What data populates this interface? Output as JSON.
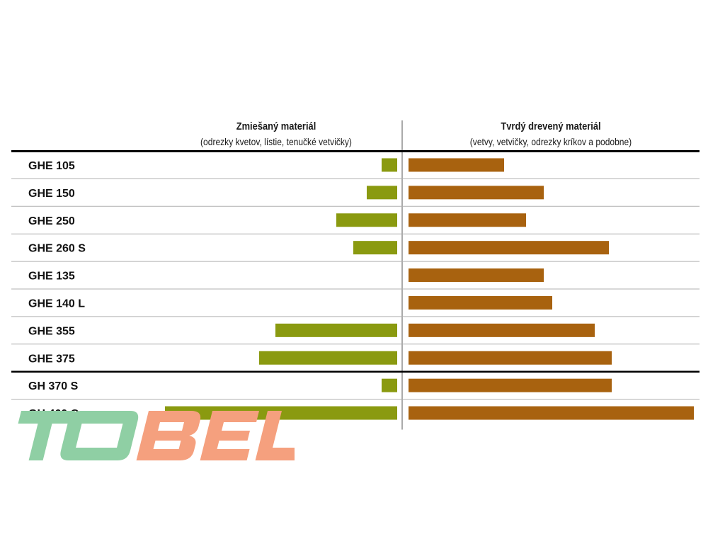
{
  "chart_data": {
    "type": "bar",
    "orientation": "horizontal",
    "layout": "diverging",
    "categories": [
      "GHE 105",
      "GHE 150",
      "GHE 250",
      "GHE 260 S",
      "GHE 135",
      "GHE 140 L",
      "GHE 355",
      "GHE 375",
      "GH 370 S",
      "GH 460 C"
    ],
    "series": [
      {
        "name": "Zmiešaný materiál",
        "subtitle": "(odrezky kvetov, lístie, tenučké vetvičky)",
        "direction": "left",
        "color": "#8a9a10",
        "values": [
          22,
          43,
          86,
          62,
          0,
          0,
          172,
          195,
          22,
          328
        ]
      },
      {
        "name": "Tvrdý drevený materiál",
        "subtitle": "(vetvy, vetvičky, odrezky kríkov a podobne)",
        "direction": "right",
        "color": "#a8620f",
        "values": [
          135,
          191,
          166,
          283,
          191,
          203,
          263,
          287,
          287,
          403
        ]
      }
    ],
    "xlim": [
      0,
      410
    ],
    "group_separator_after": "GHE 375",
    "grid": false,
    "legend": "none"
  },
  "watermark": {
    "text": "TOBEL",
    "colors": {
      "TO": "#8fcfa4",
      "BEL": "#f5a07e"
    }
  },
  "colors": {
    "rule": "#000000",
    "row_line": "#b0b0b0",
    "text": "#111111"
  }
}
